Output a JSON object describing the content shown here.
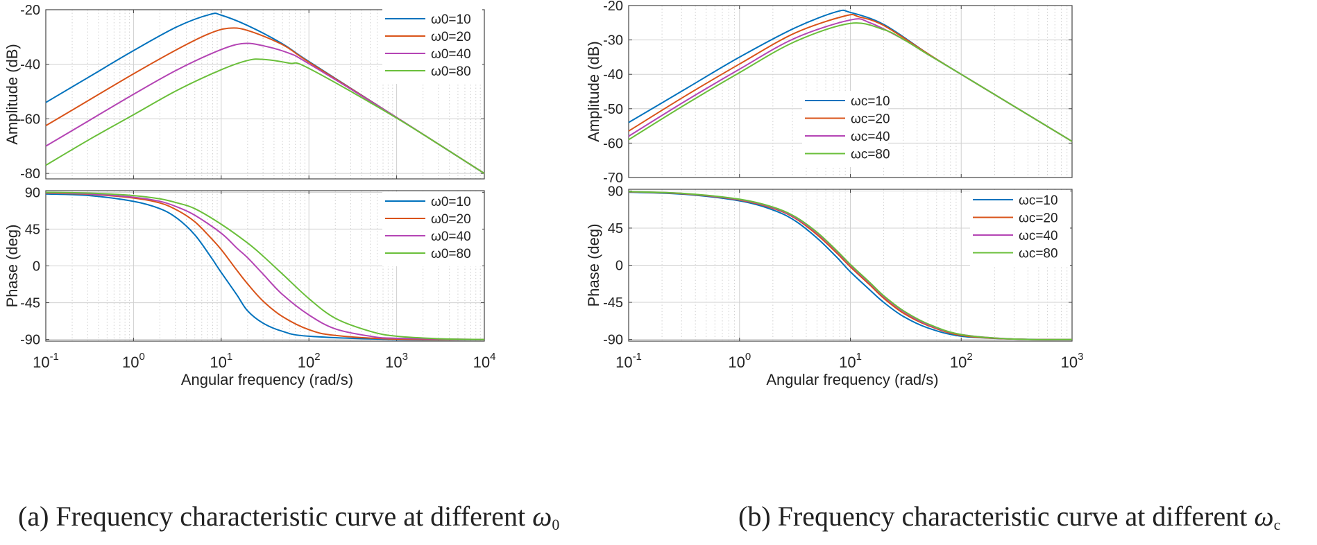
{
  "figure": {
    "captions": [
      {
        "text": "(a) Frequency characteristic curve at different ",
        "symbol": "ω",
        "subscript": "0"
      },
      {
        "text": "(b) Frequency characteristic curve at different ",
        "symbol": "ω",
        "subscript": "c"
      }
    ]
  },
  "colors": {
    "blue": "#0072BD",
    "orange": "#D95319",
    "purple": "#B444B4",
    "green": "#6ABF3A",
    "grid": "#d0d0d0",
    "axis": "#444444"
  },
  "chart_data": [
    {
      "type": "line",
      "panel": "a-amplitude",
      "xscale": "log",
      "xlim": [
        0.1,
        10000
      ],
      "ylim": [
        -82,
        -20
      ],
      "yticks": [
        -20,
        -40,
        -60,
        -80
      ],
      "xlabel": "",
      "ylabel": "Amplitude (dB)",
      "grid": true,
      "legend_position": "top-right",
      "series": [
        {
          "name": "ω0=10",
          "color": "blue",
          "points": [
            [
              0.1,
              -54
            ],
            [
              0.316,
              -44.5
            ],
            [
              1,
              -35
            ],
            [
              3.16,
              -26.2
            ],
            [
              7.5,
              -21.7
            ],
            [
              10,
              -22
            ],
            [
              20,
              -25.8
            ],
            [
              50,
              -32.5
            ],
            [
              100,
              -39
            ],
            [
              1000,
              -59.5
            ],
            [
              10000,
              -80
            ]
          ]
        },
        {
          "name": "ω0=20",
          "color": "orange",
          "points": [
            [
              0.1,
              -62.5
            ],
            [
              0.316,
              -53
            ],
            [
              1,
              -43.5
            ],
            [
              3.16,
              -34.5
            ],
            [
              7,
              -29
            ],
            [
              12,
              -26.8
            ],
            [
              20,
              -27.6
            ],
            [
              50,
              -32.8
            ],
            [
              100,
              -39.2
            ],
            [
              1000,
              -59.5
            ],
            [
              10000,
              -80
            ]
          ]
        },
        {
          "name": "ω0=40",
          "color": "purple",
          "points": [
            [
              0.1,
              -70
            ],
            [
              0.316,
              -60.5
            ],
            [
              1,
              -51
            ],
            [
              3.16,
              -42
            ],
            [
              10,
              -34.6
            ],
            [
              18,
              -32.4
            ],
            [
              30,
              -33.2
            ],
            [
              60,
              -36
            ],
            [
              100,
              -39.8
            ],
            [
              1000,
              -59.5
            ],
            [
              10000,
              -80
            ]
          ]
        },
        {
          "name": "ω0=80",
          "color": "green",
          "points": [
            [
              0.1,
              -77
            ],
            [
              0.316,
              -67.5
            ],
            [
              1,
              -58.5
            ],
            [
              3.16,
              -49.5
            ],
            [
              10,
              -42
            ],
            [
              20,
              -38.6
            ],
            [
              30,
              -38.2
            ],
            [
              60,
              -39.6
            ],
            [
              100,
              -41.5
            ],
            [
              1000,
              -59.7
            ],
            [
              10000,
              -80
            ]
          ]
        }
      ]
    },
    {
      "type": "line",
      "panel": "a-phase",
      "xscale": "log",
      "xlim": [
        0.1,
        10000
      ],
      "xticks": [
        0.1,
        1,
        10,
        100,
        1000,
        10000
      ],
      "xticklabels": [
        {
          "b": "10",
          "e": "-1"
        },
        {
          "b": "10",
          "e": "0"
        },
        {
          "b": "10",
          "e": "1"
        },
        {
          "b": "10",
          "e": "2"
        },
        {
          "b": "10",
          "e": "3"
        },
        {
          "b": "10",
          "e": "4"
        }
      ],
      "ylim": [
        -92,
        92
      ],
      "yticks": [
        90,
        45,
        0,
        -45,
        -90
      ],
      "xlabel": "Angular frequency  (rad/s)",
      "ylabel": "Phase (deg)",
      "grid": true,
      "legend_position": "top-right",
      "series": [
        {
          "name": "ω0=10",
          "color": "blue",
          "points": [
            [
              0.1,
              88
            ],
            [
              0.316,
              86
            ],
            [
              1,
              79
            ],
            [
              2,
              70
            ],
            [
              3.16,
              58
            ],
            [
              5,
              38
            ],
            [
              7.5,
              12
            ],
            [
              10,
              -8
            ],
            [
              15,
              -35
            ],
            [
              20,
              -55
            ],
            [
              30,
              -70
            ],
            [
              50,
              -80
            ],
            [
              100,
              -86
            ],
            [
              1000,
              -90
            ],
            [
              10000,
              -90
            ]
          ]
        },
        {
          "name": "ω0=20",
          "color": "orange",
          "points": [
            [
              0.1,
              89
            ],
            [
              0.316,
              87.5
            ],
            [
              1,
              83
            ],
            [
              2,
              77
            ],
            [
              3.16,
              68
            ],
            [
              5,
              54
            ],
            [
              7.5,
              35
            ],
            [
              10,
              20
            ],
            [
              15,
              -5
            ],
            [
              20,
              -22
            ],
            [
              30,
              -43
            ],
            [
              50,
              -62
            ],
            [
              100,
              -78
            ],
            [
              200,
              -85
            ],
            [
              1000,
              -89.5
            ],
            [
              10000,
              -90
            ]
          ]
        },
        {
          "name": "ω0=40",
          "color": "purple",
          "points": [
            [
              0.1,
              89.5
            ],
            [
              0.316,
              88
            ],
            [
              1,
              84
            ],
            [
              2,
              79
            ],
            [
              3.16,
              72
            ],
            [
              5,
              62
            ],
            [
              10,
              40
            ],
            [
              15,
              22
            ],
            [
              20,
              10
            ],
            [
              30,
              -10
            ],
            [
              50,
              -35
            ],
            [
              100,
              -60
            ],
            [
              200,
              -77
            ],
            [
              500,
              -86
            ],
            [
              1000,
              -88.5
            ],
            [
              10000,
              -90
            ]
          ]
        },
        {
          "name": "ω0=80",
          "color": "green",
          "points": [
            [
              0.1,
              90
            ],
            [
              0.316,
              89
            ],
            [
              1,
              86
            ],
            [
              2,
              82
            ],
            [
              3.16,
              77
            ],
            [
              5,
              70
            ],
            [
              10,
              51
            ],
            [
              20,
              28
            ],
            [
              30,
              12
            ],
            [
              50,
              -10
            ],
            [
              100,
              -40
            ],
            [
              200,
              -64
            ],
            [
              500,
              -80
            ],
            [
              1000,
              -86
            ],
            [
              3000,
              -89
            ],
            [
              10000,
              -90
            ]
          ]
        }
      ]
    },
    {
      "type": "line",
      "panel": "b-amplitude",
      "xscale": "log",
      "xlim": [
        0.1,
        1000
      ],
      "ylim": [
        -70,
        -20
      ],
      "yticks": [
        -20,
        -30,
        -40,
        -50,
        -60,
        -70
      ],
      "xlabel": "",
      "ylabel": "Amplitude (dB)",
      "grid": true,
      "legend_position": "center-left",
      "series": [
        {
          "name": "ωc=10",
          "color": "blue",
          "points": [
            [
              0.1,
              -54
            ],
            [
              0.316,
              -44.5
            ],
            [
              1,
              -35
            ],
            [
              3.16,
              -26.5
            ],
            [
              7.5,
              -21.8
            ],
            [
              10,
              -22
            ],
            [
              20,
              -25.5
            ],
            [
              50,
              -34
            ],
            [
              100,
              -40
            ],
            [
              1000,
              -59.5
            ]
          ]
        },
        {
          "name": "ωc=20",
          "color": "orange",
          "points": [
            [
              0.1,
              -56.5
            ],
            [
              0.316,
              -46.5
            ],
            [
              1,
              -37
            ],
            [
              3.16,
              -28
            ],
            [
              9,
              -23
            ],
            [
              12,
              -23.3
            ],
            [
              20,
              -25.8
            ],
            [
              50,
              -34
            ],
            [
              100,
              -40
            ],
            [
              1000,
              -59.5
            ]
          ]
        },
        {
          "name": "ωc=40",
          "color": "purple",
          "points": [
            [
              0.1,
              -58
            ],
            [
              0.316,
              -48
            ],
            [
              1,
              -38.5
            ],
            [
              3.16,
              -29.5
            ],
            [
              10,
              -24.2
            ],
            [
              15,
              -25
            ],
            [
              30,
              -29.8
            ],
            [
              50,
              -34.2
            ],
            [
              100,
              -40
            ],
            [
              1000,
              -59.5
            ]
          ]
        },
        {
          "name": "ωc=80",
          "color": "green",
          "points": [
            [
              0.1,
              -59
            ],
            [
              0.316,
              -49
            ],
            [
              1,
              -39.5
            ],
            [
              3.16,
              -30.5
            ],
            [
              10,
              -25.2
            ],
            [
              20,
              -27
            ],
            [
              30,
              -29.8
            ],
            [
              50,
              -34.2
            ],
            [
              100,
              -40
            ],
            [
              1000,
              -59.5
            ]
          ]
        }
      ]
    },
    {
      "type": "line",
      "panel": "b-phase",
      "xscale": "log",
      "xlim": [
        0.1,
        1000
      ],
      "xticks": [
        0.1,
        1,
        10,
        100,
        1000
      ],
      "xticklabels": [
        {
          "b": "10",
          "e": "-1"
        },
        {
          "b": "10",
          "e": "0"
        },
        {
          "b": "10",
          "e": "1"
        },
        {
          "b": "10",
          "e": "2"
        },
        {
          "b": "10",
          "e": "3"
        }
      ],
      "ylim": [
        -92,
        92
      ],
      "yticks": [
        90,
        45,
        0,
        -45,
        -90
      ],
      "xlabel": "Angular frequency  (rad/s)",
      "ylabel": "Phase (deg)",
      "grid": true,
      "legend_position": "top-right",
      "series": [
        {
          "name": "ωc=10",
          "color": "blue",
          "points": [
            [
              0.1,
              88.5
            ],
            [
              0.316,
              86
            ],
            [
              1,
              78
            ],
            [
              2,
              67
            ],
            [
              3.16,
              54
            ],
            [
              5,
              33
            ],
            [
              7.5,
              10
            ],
            [
              10,
              -8
            ],
            [
              15,
              -30
            ],
            [
              20,
              -45
            ],
            [
              30,
              -62
            ],
            [
              50,
              -76
            ],
            [
              100,
              -86
            ],
            [
              300,
              -89.5
            ],
            [
              1000,
              -90
            ]
          ]
        },
        {
          "name": "ωc=20",
          "color": "orange",
          "points": [
            [
              0.1,
              89
            ],
            [
              0.316,
              86.5
            ],
            [
              1,
              79
            ],
            [
              2,
              69
            ],
            [
              3.16,
              57
            ],
            [
              5,
              37
            ],
            [
              7.5,
              15
            ],
            [
              10,
              -2
            ],
            [
              15,
              -24
            ],
            [
              20,
              -40
            ],
            [
              30,
              -58
            ],
            [
              50,
              -73
            ],
            [
              100,
              -85
            ],
            [
              300,
              -89.5
            ],
            [
              1000,
              -90
            ]
          ]
        },
        {
          "name": "ωc=40",
          "color": "purple",
          "points": [
            [
              0.1,
              89
            ],
            [
              0.316,
              86.8
            ],
            [
              1,
              79.5
            ],
            [
              2,
              69.8
            ],
            [
              3.16,
              58
            ],
            [
              5,
              39
            ],
            [
              7.5,
              17
            ],
            [
              10,
              0
            ],
            [
              15,
              -22
            ],
            [
              20,
              -38
            ],
            [
              30,
              -56
            ],
            [
              50,
              -72
            ],
            [
              100,
              -84
            ],
            [
              300,
              -89.5
            ],
            [
              1000,
              -90
            ]
          ]
        },
        {
          "name": "ωc=80",
          "color": "green",
          "points": [
            [
              0.1,
              89.2
            ],
            [
              0.316,
              87
            ],
            [
              1,
              80
            ],
            [
              2,
              70.5
            ],
            [
              3.16,
              59
            ],
            [
              5,
              40
            ],
            [
              7.5,
              18
            ],
            [
              10,
              1
            ],
            [
              15,
              -21
            ],
            [
              20,
              -37
            ],
            [
              30,
              -55
            ],
            [
              50,
              -71
            ],
            [
              100,
              -84
            ],
            [
              300,
              -89.5
            ],
            [
              1000,
              -90
            ]
          ]
        }
      ]
    }
  ]
}
